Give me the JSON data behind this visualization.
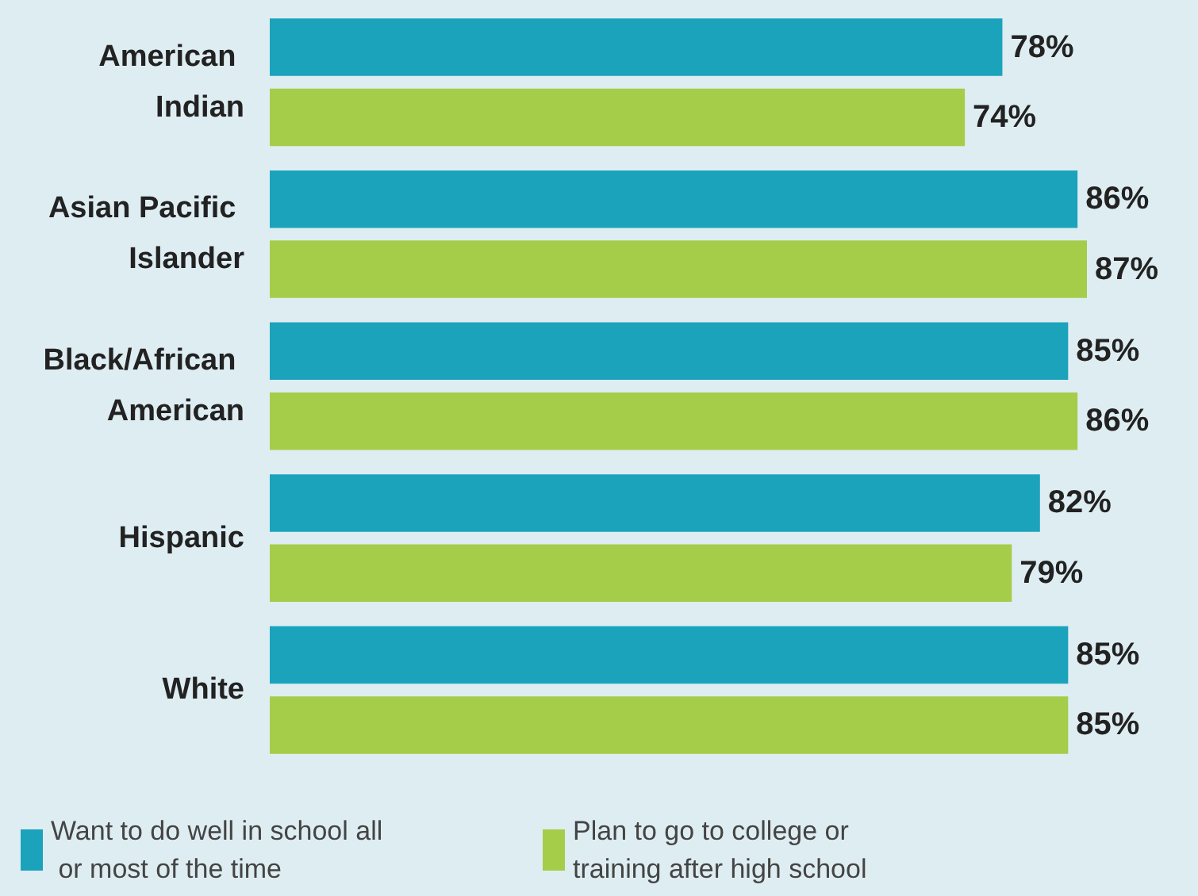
{
  "chart_data": {
    "type": "bar",
    "orientation": "horizontal",
    "categories": [
      "American Indian",
      "Asian Pacific Islander",
      "Black/African American",
      "Hispanic",
      "White"
    ],
    "series": [
      {
        "name": "Want to do well in school all or most of the time",
        "color": "#1ba3bc",
        "values": [
          78,
          86,
          85,
          82,
          85
        ],
        "value_labels": [
          "78%",
          "86%",
          "85%",
          "82%",
          "85%"
        ]
      },
      {
        "name": "Plan to go to college or training after high school",
        "color": "#a5cd4a",
        "values": [
          74,
          87,
          86,
          79,
          85
        ],
        "value_labels": [
          "74%",
          "87%",
          "86%",
          "79%",
          "85%"
        ]
      }
    ],
    "legend": "bottom",
    "tick_labels": "y"
  }
}
